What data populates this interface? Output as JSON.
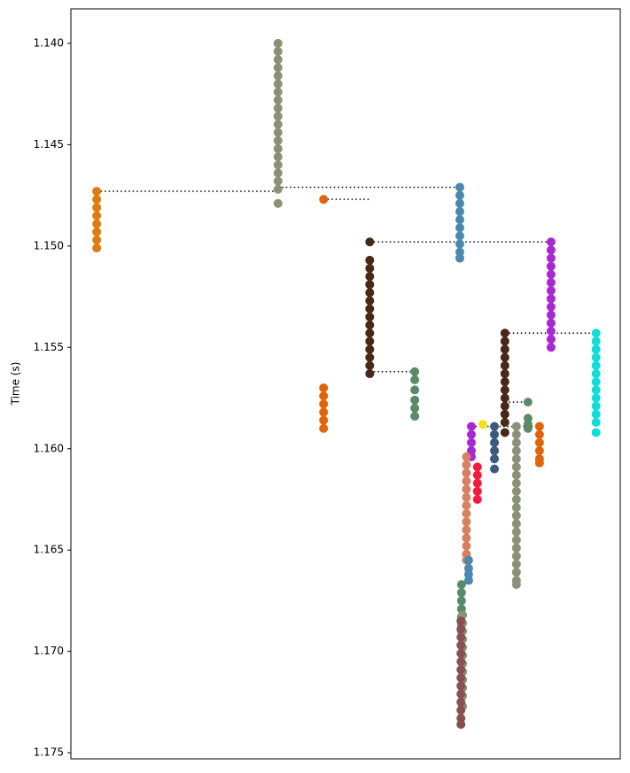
{
  "chart_data": {
    "type": "scatter",
    "ylabel": "Time (s)",
    "xlim": [
      0,
      100
    ],
    "ylim": [
      1.1383,
      1.1753
    ],
    "y_inverted": true,
    "yticks": [
      {
        "value": 1.14,
        "label": "1.140"
      },
      1.145,
      {
        "value": 1.15,
        "label": "1.150"
      },
      1.155,
      {
        "value": 1.16,
        "label": "1.160"
      },
      1.165,
      {
        "value": 1.17,
        "label": "1.170"
      },
      1.175
    ],
    "series": [
      {
        "color": "#e07b10",
        "x": 4.7,
        "values": [
          1.1473,
          1.1477,
          1.1481,
          1.1485,
          1.1489,
          1.1493,
          1.1497,
          1.1501
        ]
      },
      {
        "color": "#8a9178",
        "x": 37.7,
        "values": [
          1.14,
          1.1404,
          1.1408,
          1.1412,
          1.1416,
          1.142,
          1.1424,
          1.1428,
          1.1432,
          1.1436,
          1.144,
          1.1444,
          1.1448,
          1.1452,
          1.1456,
          1.146,
          1.1464,
          1.1468,
          1.1472,
          1.1479
        ]
      },
      {
        "color": "#e0640a",
        "x": 46,
        "values": [
          1.1477,
          1.157,
          1.1574,
          1.1578,
          1.1582,
          1.1586,
          1.159
        ]
      },
      {
        "color": "#4a2818",
        "x": 54.4,
        "values": [
          1.1498,
          1.1507,
          1.1511,
          1.1515,
          1.1519,
          1.1523,
          1.1527,
          1.1531,
          1.1535,
          1.1539,
          1.1543,
          1.1547,
          1.1551,
          1.1555,
          1.1559,
          1.1563
        ]
      },
      {
        "color": "#5a8a68",
        "x": 62.6,
        "values": [
          1.1562,
          1.1566,
          1.1571,
          1.1576,
          1.158,
          1.1584
        ]
      },
      {
        "color": "#4a88b0",
        "x": 70.8,
        "values": [
          1.1471,
          1.1475,
          1.1479,
          1.1483,
          1.1487,
          1.1491,
          1.1495,
          1.1499,
          1.1503,
          1.1506
        ]
      },
      {
        "color": "#a828d8",
        "x": 87.4,
        "values": [
          1.1498,
          1.1502,
          1.1506,
          1.151,
          1.1514,
          1.1518,
          1.1522,
          1.1526,
          1.153,
          1.1534,
          1.1538,
          1.1542,
          1.1546,
          1.155
        ]
      },
      {
        "color": "#10dcd8",
        "x": 95.6,
        "values": [
          1.1543,
          1.1547,
          1.1551,
          1.1555,
          1.1559,
          1.1563,
          1.1567,
          1.1571,
          1.1575,
          1.1579,
          1.1583,
          1.1587,
          1.1592
        ]
      },
      {
        "color": "#4a2818",
        "x": 79,
        "values": [
          1.1543,
          1.1547,
          1.1551,
          1.1555,
          1.1559,
          1.1563,
          1.1567,
          1.1571,
          1.1575,
          1.1579,
          1.1583,
          1.1587,
          1.1592
        ]
      },
      {
        "color": "#3a5a80",
        "x": 77.1,
        "values": [
          1.1589,
          1.1593,
          1.1597,
          1.1601,
          1.1605,
          1.161
        ]
      },
      {
        "color": "#a828d8",
        "x": 72.9,
        "values": [
          1.1589,
          1.1593,
          1.1597,
          1.1601,
          1.1604
        ]
      },
      {
        "color": "#f81840",
        "x": 74,
        "values": [
          1.1609,
          1.1613,
          1.1617,
          1.1621,
          1.1625
        ]
      },
      {
        "color": "#d88060",
        "x": 72,
        "values": [
          1.1604,
          1.1608,
          1.1612,
          1.1616,
          1.162,
          1.1624,
          1.1628,
          1.1632,
          1.1636,
          1.164,
          1.1644,
          1.1648,
          1.1652,
          1.1655
        ]
      },
      {
        "color": "#4a88b0",
        "x": 72.4,
        "values": [
          1.1655,
          1.1659,
          1.1662,
          1.1665
        ]
      },
      {
        "color": "#5a8a68",
        "x": 71.1,
        "values": [
          1.1667,
          1.1671,
          1.1675,
          1.1679,
          1.1683,
          1.1687,
          1.169
        ]
      },
      {
        "color": "#8a9178",
        "x": 71.3,
        "values": [
          1.1682,
          1.1686,
          1.169,
          1.1694,
          1.1698,
          1.1702,
          1.1706,
          1.171,
          1.1714,
          1.1718,
          1.1722,
          1.1727
        ]
      },
      {
        "color": "#885050",
        "x": 71,
        "values": [
          1.1685,
          1.1689,
          1.1693,
          1.1697,
          1.1701,
          1.1705,
          1.1709,
          1.1713,
          1.1717,
          1.1721,
          1.1725,
          1.1729,
          1.1733,
          1.1736
        ]
      },
      {
        "color": "#8a9178",
        "x": 81.1,
        "values": [
          1.1589,
          1.1593,
          1.1597,
          1.1601,
          1.1605,
          1.1609,
          1.1613,
          1.1617,
          1.1621,
          1.1625,
          1.1629,
          1.1633,
          1.1637,
          1.1641,
          1.1645,
          1.1649,
          1.1653,
          1.1657,
          1.1661,
          1.1665,
          1.1667
        ]
      },
      {
        "color": "#5a8a68",
        "x": 83.2,
        "values": [
          1.1577,
          1.1585,
          1.1588,
          1.159
        ]
      },
      {
        "color": "#e0640a",
        "x": 85.3,
        "values": [
          1.1589,
          1.1593,
          1.1597,
          1.1601,
          1.1605,
          1.1607
        ]
      },
      {
        "color": "#f0e020",
        "x": 75,
        "values": [
          1.1588
        ]
      }
    ],
    "links": [
      {
        "x": [
          4.7,
          37.7
        ],
        "y": 1.1473
      },
      {
        "x": [
          37.7,
          70.8
        ],
        "y": 1.1471
      },
      {
        "x": [
          46,
          54.4
        ],
        "y": 1.1477
      },
      {
        "x": [
          54.4,
          87.4
        ],
        "y": 1.1498
      },
      {
        "x": [
          54.4,
          62.6
        ],
        "y": 1.1562
      },
      {
        "x": [
          79,
          95.6
        ],
        "y": 1.1543
      },
      {
        "x": [
          72.9,
          85.3
        ],
        "y": 1.1589
      },
      {
        "x": [
          79,
          83.2
        ],
        "y": 1.1577
      }
    ]
  }
}
